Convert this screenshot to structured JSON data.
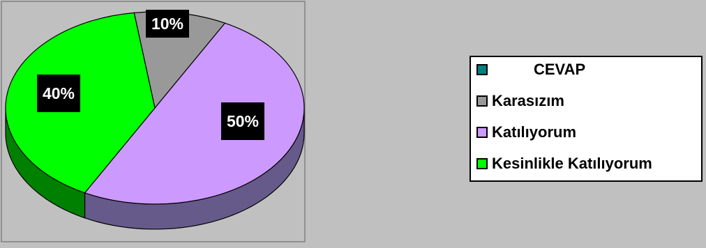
{
  "chart_data": {
    "type": "pie",
    "style": "3d",
    "categories": [
      "Karasızım",
      "Katılıyorum",
      "Kesinlikle Katılıyorum"
    ],
    "values": [
      10,
      50,
      40
    ],
    "data_labels": [
      "10%",
      "50%",
      "40%"
    ],
    "legend_title": "CEVAP",
    "legend_placement": "right",
    "colors": {
      "CEVAP": "#008080",
      "Karasızım": "#999999",
      "Katılıyorum": "#cc99ff",
      "Kesinlikle Katılıyorum": "#00ff00"
    },
    "side_colors": {
      "Karasızım": "#4d4d4d",
      "Katılıyorum": "#665a8a",
      "Kesinlikle Katılıyorum": "#008000"
    },
    "background": "#c0c0c0"
  },
  "legend": {
    "items": [
      {
        "label": "CEVAP",
        "color": "#008080"
      },
      {
        "label": "Karasızım",
        "color": "#999999"
      },
      {
        "label": "Katılıyorum",
        "color": "#cc99ff"
      },
      {
        "label": "Kesinlikle Katılıyorum",
        "color": "#00ff00"
      }
    ]
  }
}
